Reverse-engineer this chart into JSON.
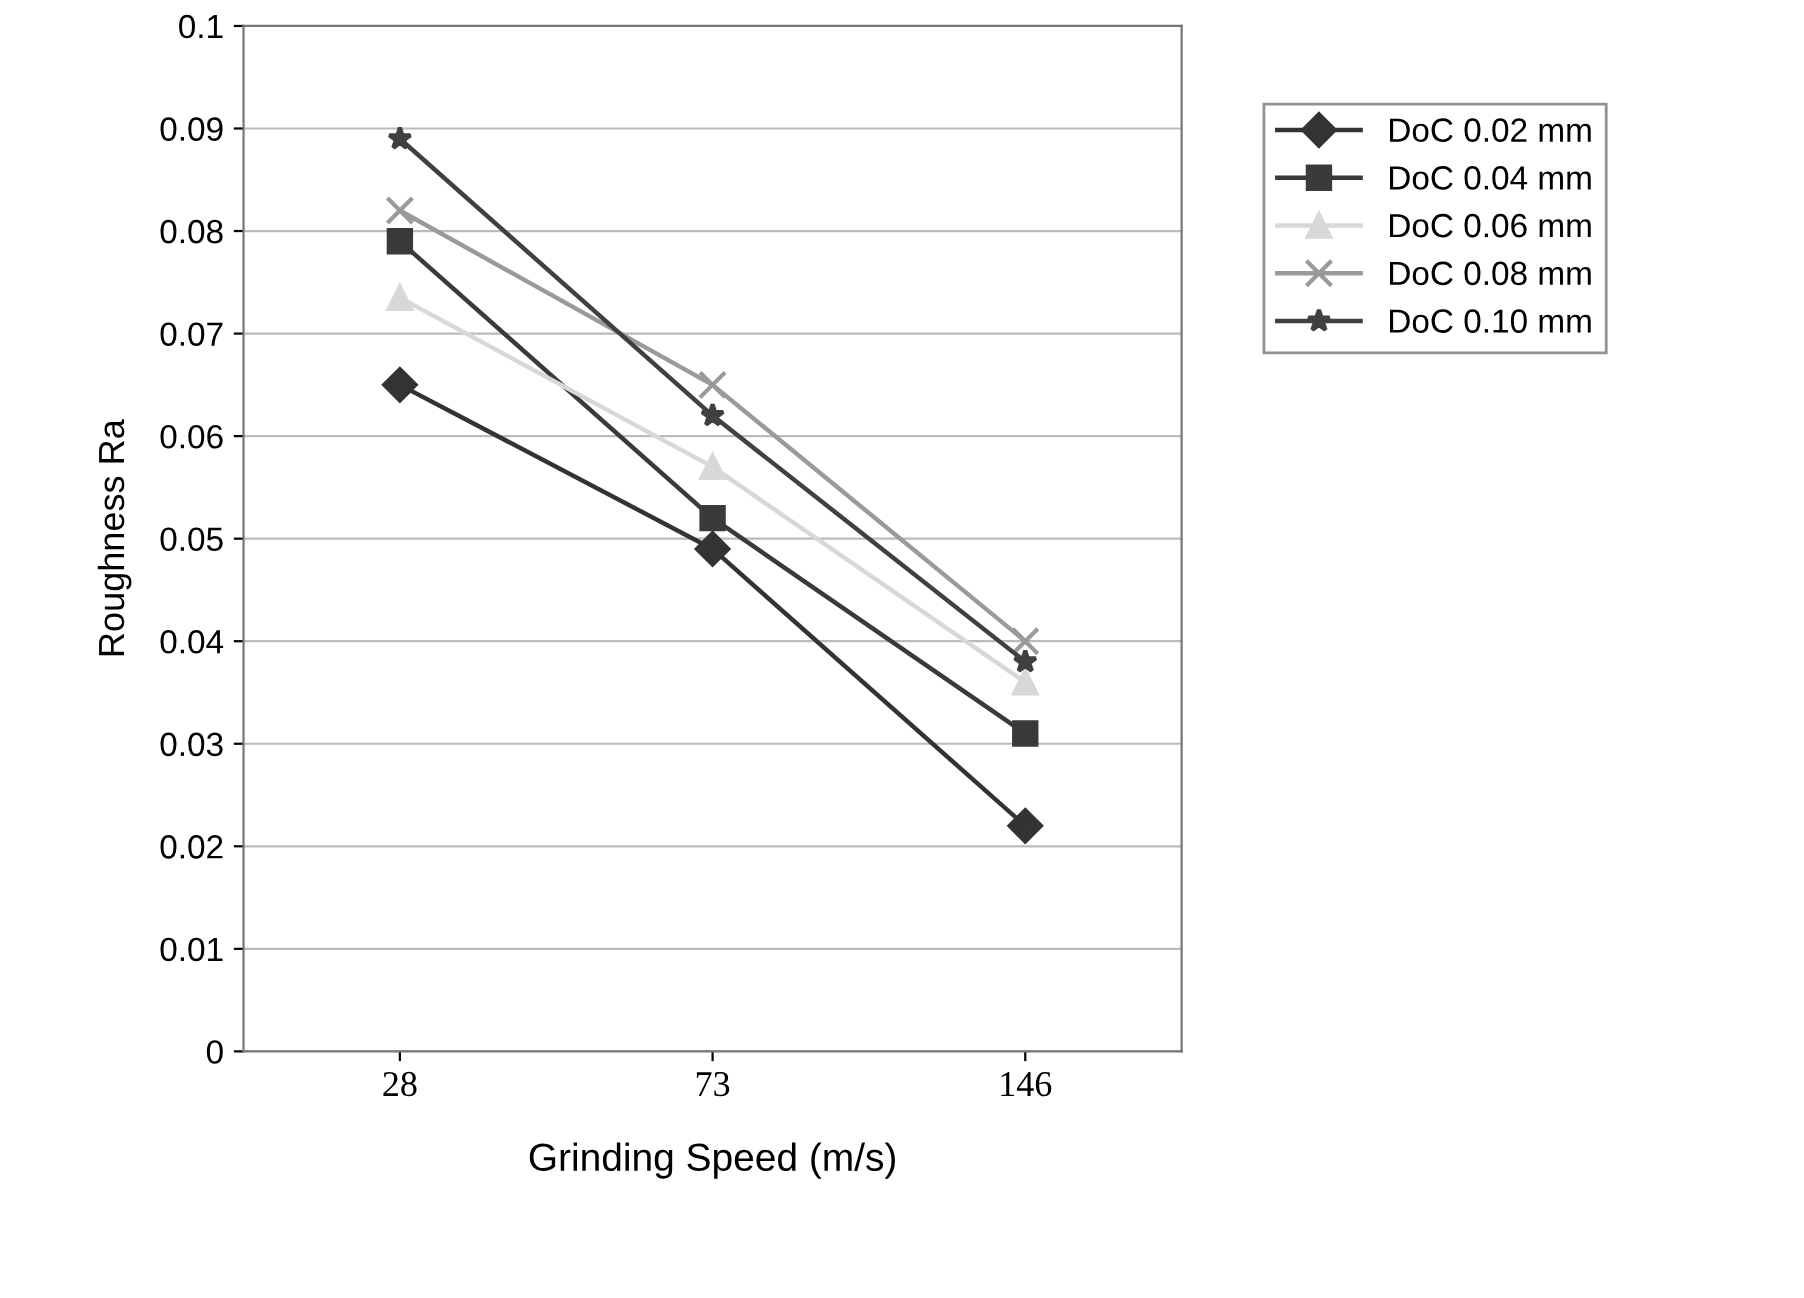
{
  "chart_data": {
    "type": "line",
    "xlabel": "Grinding Speed (m/s)",
    "ylabel": "Roughness Ra",
    "categories": [
      "28",
      "73",
      "146"
    ],
    "series": [
      {
        "name": "DoC 0.02 mm",
        "color": "#333333",
        "marker": "diamond",
        "values": [
          0.065,
          0.049,
          0.022
        ]
      },
      {
        "name": "DoC 0.04 mm",
        "color": "#3a3a3a",
        "marker": "square",
        "values": [
          0.079,
          0.052,
          0.031
        ]
      },
      {
        "name": "DoC 0.06 mm",
        "color": "#d8d8d8",
        "marker": "triangle",
        "values": [
          0.0735,
          0.057,
          0.036
        ]
      },
      {
        "name": "DoC 0.08 mm",
        "color": "#9a9a9a",
        "marker": "cross",
        "values": [
          0.082,
          0.065,
          0.04
        ]
      },
      {
        "name": "DoC 0.10 mm",
        "color": "#404040",
        "marker": "star",
        "values": [
          0.089,
          0.062,
          0.038
        ]
      }
    ],
    "ylim": [
      0,
      0.1
    ],
    "yticks": [
      0,
      0.01,
      0.02,
      0.03,
      0.04,
      0.05,
      0.06,
      0.07,
      0.08,
      0.09,
      0.1
    ],
    "grid": "y",
    "legend": "right",
    "line_style": "solid"
  }
}
